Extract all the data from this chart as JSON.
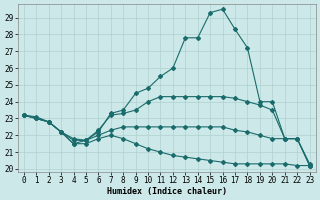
{
  "xlabel": "Humidex (Indice chaleur)",
  "bg_color": "#cce8e8",
  "grid_color": "#b0d0d0",
  "line_color": "#1a6b6b",
  "xlim": [
    -0.5,
    23.5
  ],
  "ylim": [
    19.8,
    29.8
  ],
  "yticks": [
    20,
    21,
    22,
    23,
    24,
    25,
    26,
    27,
    28,
    29
  ],
  "xticks": [
    0,
    1,
    2,
    3,
    4,
    5,
    6,
    7,
    8,
    9,
    10,
    11,
    12,
    13,
    14,
    15,
    16,
    17,
    18,
    19,
    20,
    21,
    22,
    23
  ],
  "line1_x": [
    0,
    1,
    2,
    3,
    4,
    5,
    6,
    7,
    8,
    9,
    10,
    11,
    12,
    13,
    14,
    15,
    16,
    17,
    18,
    19,
    20,
    21,
    22,
    23
  ],
  "line1_y": [
    23.2,
    23.1,
    22.8,
    22.2,
    21.8,
    21.7,
    22.2,
    23.3,
    23.5,
    24.5,
    24.8,
    25.5,
    26.0,
    27.8,
    27.8,
    29.3,
    29.5,
    28.3,
    27.2,
    24.0,
    24.0,
    21.8,
    21.8,
    20.2
  ],
  "line1_markers": [
    0,
    1,
    2,
    3,
    4,
    5,
    6,
    7,
    8,
    9,
    10,
    11,
    12,
    13,
    14,
    15,
    16,
    17,
    18,
    19,
    20,
    21,
    22,
    23
  ],
  "line2_x": [
    0,
    1,
    2,
    3,
    4,
    5,
    6,
    7,
    8,
    9,
    10,
    11,
    12,
    13,
    14,
    15,
    16,
    17,
    18,
    19,
    20,
    21,
    22,
    23
  ],
  "line2_y": [
    23.2,
    23.0,
    22.8,
    22.2,
    21.7,
    21.7,
    22.3,
    23.2,
    23.3,
    23.5,
    24.0,
    24.3,
    24.3,
    24.3,
    24.3,
    24.3,
    24.3,
    24.2,
    24.0,
    23.8,
    23.5,
    21.8,
    21.8,
    20.3
  ],
  "line3_x": [
    0,
    1,
    2,
    3,
    4,
    5,
    6,
    7,
    8,
    9,
    10,
    11,
    12,
    13,
    14,
    15,
    16,
    17,
    18,
    19,
    20,
    21,
    22,
    23
  ],
  "line3_y": [
    23.2,
    23.0,
    22.8,
    22.2,
    21.5,
    21.7,
    22.0,
    22.3,
    22.5,
    22.5,
    22.5,
    22.5,
    22.5,
    22.5,
    22.5,
    22.5,
    22.5,
    22.3,
    22.2,
    22.0,
    21.8,
    21.8,
    21.8,
    20.2
  ],
  "line4_x": [
    0,
    1,
    2,
    3,
    4,
    5,
    6,
    7,
    8,
    9,
    10,
    11,
    12,
    13,
    14,
    15,
    16,
    17,
    18,
    19,
    20,
    21,
    22,
    23
  ],
  "line4_y": [
    23.2,
    23.0,
    22.8,
    22.2,
    21.5,
    21.5,
    21.8,
    22.0,
    21.8,
    21.5,
    21.2,
    21.0,
    20.8,
    20.7,
    20.6,
    20.5,
    20.4,
    20.3,
    20.3,
    20.3,
    20.3,
    20.3,
    20.2,
    20.2
  ]
}
